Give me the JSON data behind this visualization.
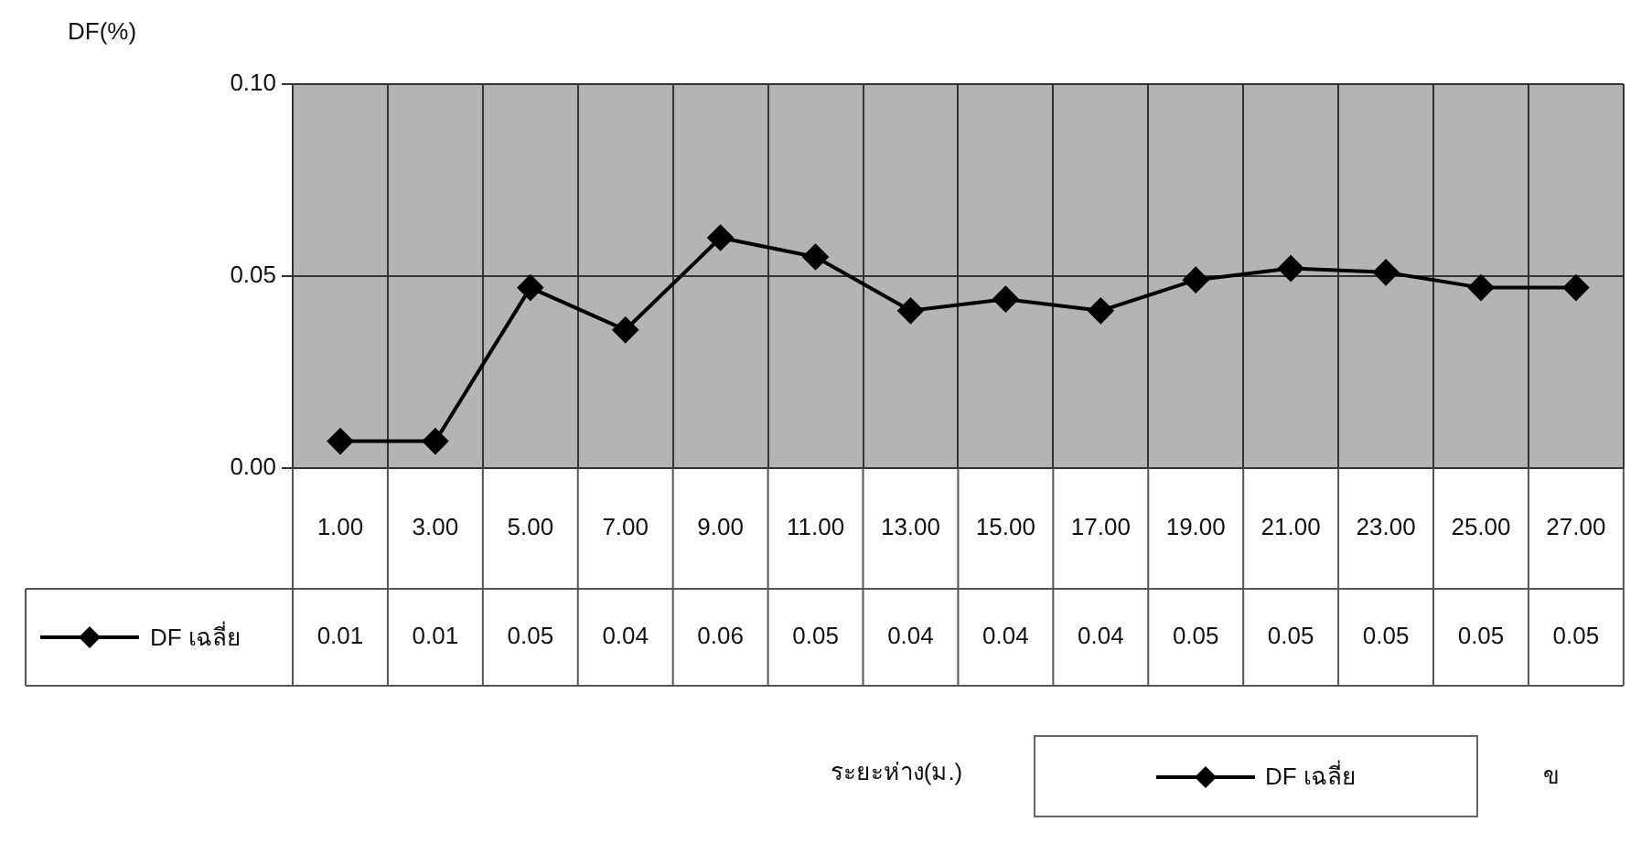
{
  "chart_data": {
    "type": "line",
    "ylabel": "DF(%)",
    "categories": [
      "1.00",
      "3.00",
      "5.00",
      "7.00",
      "9.00",
      "11.00",
      "13.00",
      "15.00",
      "17.00",
      "19.00",
      "21.00",
      "23.00",
      "25.00",
      "27.00"
    ],
    "series": [
      {
        "name": "DF เฉลี่ย",
        "color": "#000000",
        "values": [
          0.007,
          0.007,
          0.047,
          0.036,
          0.06,
          0.055,
          0.041,
          0.044,
          0.041,
          0.049,
          0.052,
          0.051,
          0.047,
          0.047
        ],
        "value_labels": [
          "0.01",
          "0.01",
          "0.05",
          "0.04",
          "0.06",
          "0.05",
          "0.04",
          "0.04",
          "0.04",
          "0.05",
          "0.05",
          "0.05",
          "0.05",
          "0.05"
        ]
      }
    ],
    "ylim": [
      0,
      0.1
    ],
    "yticks": [
      {
        "value": 0,
        "label": "0.00"
      },
      {
        "value": 0.05,
        "label": "0.05"
      },
      {
        "value": 0.1,
        "label": "0.10"
      }
    ],
    "grid": true,
    "legend": "bottom",
    "marker": "diamond",
    "line_style": "solid",
    "annotations": [
      "ระยะห่าง(ม.)",
      "ข"
    ]
  }
}
